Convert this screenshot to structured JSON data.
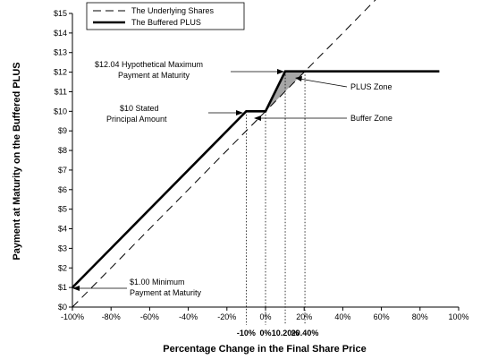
{
  "chart_data": {
    "type": "line",
    "xlabel": "Percentage Change in the Final Share Price",
    "ylabel": "Payment at Maturity on the Buffered PLUS",
    "xlim": [
      -100,
      100
    ],
    "ylim": [
      0,
      15
    ],
    "x_ticks": [
      "-100%",
      "-80%",
      "-60%",
      "-40%",
      "-20%",
      "0%",
      "20%",
      "40%",
      "60%",
      "80%",
      "100%"
    ],
    "y_ticks": [
      "$0",
      "$1",
      "$2",
      "$3",
      "$4",
      "$5",
      "$6",
      "$7",
      "$8",
      "$9",
      "$10",
      "$11",
      "$12",
      "$13",
      "$14",
      "$15"
    ],
    "extra_x_labels": [
      {
        "x": -10,
        "label": "-10%"
      },
      {
        "x": 0,
        "label": "0%"
      },
      {
        "x": 10.2,
        "label": "10.20%"
      },
      {
        "x": 20.4,
        "label": "20.40%"
      }
    ],
    "legend": {
      "placement": "top-left",
      "entries": [
        "The Underlying Shares",
        "The Buffered PLUS"
      ]
    },
    "series": [
      {
        "name": "The Underlying Shares",
        "style": "dashed",
        "x": [
          -100,
          100
        ],
        "y": [
          0,
          20
        ]
      },
      {
        "name": "The Buffered PLUS",
        "style": "solid",
        "x": [
          -100,
          -10,
          0,
          10.2,
          90
        ],
        "y": [
          1,
          10,
          10,
          12.04,
          12.04
        ]
      }
    ],
    "annotations": {
      "max_payment": "$12.04 Hypothetical Maximum Payment at Maturity",
      "stated_principal": "$10 Stated Principal Amount",
      "plus_zone": "PLUS Zone",
      "buffer_zone": "Buffer Zone",
      "min_payment": "$1.00 Minimum Payment at Maturity"
    },
    "colors": {
      "line": "#000000",
      "zone_fill": "#a6a6a6",
      "background": "#ffffff"
    }
  }
}
